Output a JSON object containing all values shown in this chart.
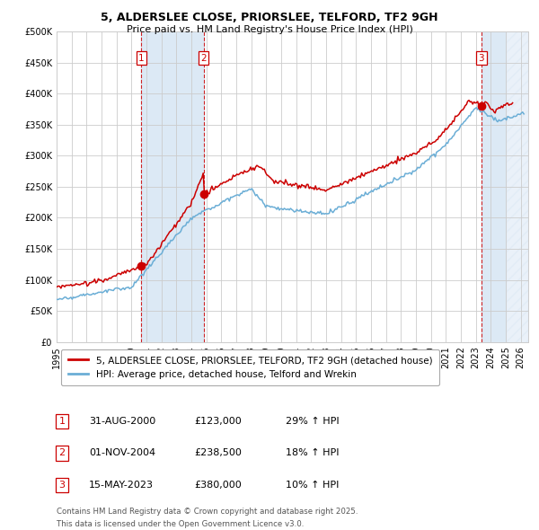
{
  "title1": "5, ALDERSLEE CLOSE, PRIORSLEE, TELFORD, TF2 9GH",
  "title2": "Price paid vs. HM Land Registry's House Price Index (HPI)",
  "legend_line1": "5, ALDERSLEE CLOSE, PRIORSLEE, TELFORD, TF2 9GH (detached house)",
  "legend_line2": "HPI: Average price, detached house, Telford and Wrekin",
  "footnote1": "Contains HM Land Registry data © Crown copyright and database right 2025.",
  "footnote2": "This data is licensed under the Open Government Licence v3.0.",
  "transactions": [
    {
      "num": 1,
      "date": "31-AUG-2000",
      "price": 123000,
      "price_str": "£123,000",
      "hpi_pct": "29% ↑ HPI",
      "date_val": 2000.667
    },
    {
      "num": 2,
      "date": "01-NOV-2004",
      "price": 238500,
      "price_str": "£238,500",
      "hpi_pct": "18% ↑ HPI",
      "date_val": 2004.833
    },
    {
      "num": 3,
      "date": "15-MAY-2023",
      "price": 380000,
      "price_str": "£380,000",
      "hpi_pct": "10% ↑ HPI",
      "date_val": 2023.374
    }
  ],
  "ylim": [
    0,
    500000
  ],
  "yticks": [
    0,
    50000,
    100000,
    150000,
    200000,
    250000,
    300000,
    350000,
    400000,
    450000,
    500000
  ],
  "xlim_start": 1995.0,
  "xlim_end": 2026.5,
  "hpi_color": "#6baed6",
  "price_color": "#cc0000",
  "bg_color": "#ffffff",
  "grid_color": "#cccccc",
  "highlight_color": "#dce9f5",
  "dashed_color": "#cc0000",
  "hatch_region_start": 2025.0
}
